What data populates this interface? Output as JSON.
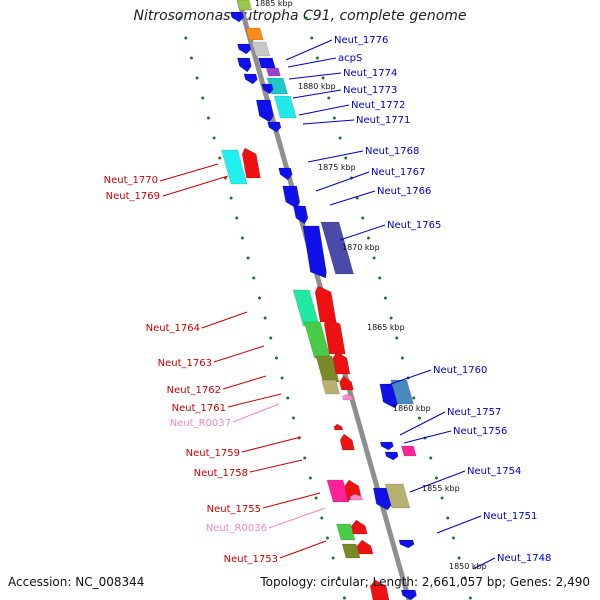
{
  "title": "Nitrosomonas eutropha C91, complete genome",
  "footer": {
    "accession": "Accession: NC_008344",
    "summary": "Topology: circular; Length: 2,661,057 bp; Genes: 2,490"
  },
  "colors": {
    "backbone": "#8f8f8f",
    "tick_dot": "#1f7a1f",
    "label_forward": "#0000cc",
    "label_reverse": "#cc0000",
    "label_rna": "#ee88bb"
  },
  "ticks": [
    "1885 kbp",
    "1880 kbp",
    "1875 kbp",
    "1870 kbp",
    "1865 kbp",
    "1860 kbp",
    "1855 kbp",
    "1850 kbp"
  ],
  "forward_labels": [
    "Neut_1776",
    "acpS",
    "Neut_1774",
    "Neut_1773",
    "Neut_1772",
    "Neut_1771",
    "Neut_1768",
    "Neut_1767",
    "Neut_1766",
    "Neut_1765",
    "Neut_1760",
    "Neut_1757",
    "Neut_1756",
    "Neut_1754",
    "Neut_1751",
    "Neut_1748"
  ],
  "reverse_labels": [
    "Neut_1770",
    "Neut_1769",
    "Neut_1764",
    "Neut_1763",
    "Neut_1762",
    "Neut_1761",
    "Neut_R0037",
    "Neut_1759",
    "Neut_1758",
    "Neut_1755",
    "Neut_R0036",
    "Neut_1753"
  ]
}
